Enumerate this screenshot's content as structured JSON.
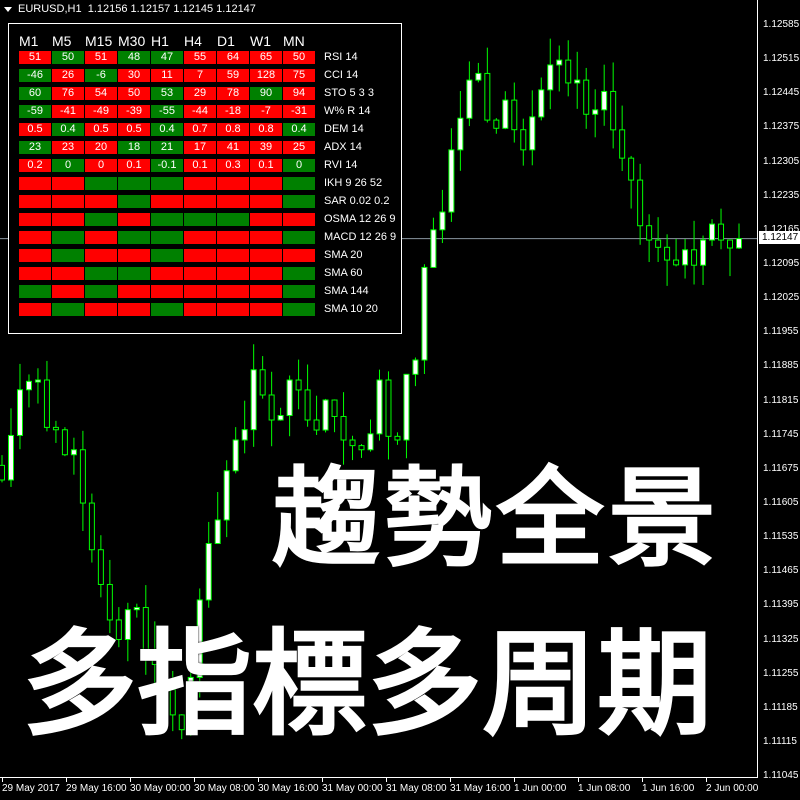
{
  "window": {
    "symbol_title": "EURUSD,H1",
    "ohlc": "1.12156 1.12157 1.12145 1.12147"
  },
  "colors": {
    "bull": "#ff0000",
    "bear": "#008000",
    "candle_outline": "#00ff00",
    "background": "#000000",
    "price_line": "#8a96a0"
  },
  "panel": {
    "timeframes": [
      "M1",
      "M5",
      "M15",
      "M30",
      "H1",
      "H4",
      "D1",
      "W1",
      "MN"
    ],
    "rows": [
      {
        "label": "RSI 14",
        "values": [
          "51",
          "50",
          "51",
          "48",
          "47",
          "55",
          "64",
          "65",
          "50"
        ],
        "colors": [
          "r",
          "g",
          "r",
          "g",
          "g",
          "r",
          "r",
          "r",
          "r"
        ]
      },
      {
        "label": "CCI 14",
        "values": [
          "-46",
          "26",
          "-6",
          "30",
          "11",
          "7",
          "59",
          "128",
          "75"
        ],
        "colors": [
          "g",
          "r",
          "g",
          "r",
          "r",
          "r",
          "r",
          "r",
          "r"
        ]
      },
      {
        "label": "STO 5 3 3",
        "values": [
          "60",
          "76",
          "54",
          "50",
          "53",
          "29",
          "78",
          "90",
          "94"
        ],
        "colors": [
          "g",
          "r",
          "r",
          "r",
          "g",
          "r",
          "r",
          "g",
          "r"
        ]
      },
      {
        "label": "W% R 14",
        "values": [
          "-59",
          "-41",
          "-49",
          "-39",
          "-55",
          "-44",
          "-18",
          "-7",
          "-31"
        ],
        "colors": [
          "g",
          "r",
          "r",
          "r",
          "g",
          "r",
          "r",
          "r",
          "r"
        ]
      },
      {
        "label": "DEM 14",
        "values": [
          "0.5",
          "0.4",
          "0.5",
          "0.5",
          "0.4",
          "0.7",
          "0.8",
          "0.8",
          "0.4"
        ],
        "colors": [
          "r",
          "g",
          "r",
          "r",
          "g",
          "r",
          "r",
          "r",
          "g"
        ]
      },
      {
        "label": "ADX 14",
        "values": [
          "23",
          "23",
          "20",
          "18",
          "21",
          "17",
          "41",
          "39",
          "25"
        ],
        "colors": [
          "g",
          "r",
          "r",
          "g",
          "g",
          "r",
          "r",
          "r",
          "r"
        ]
      },
      {
        "label": "RVI 14",
        "values": [
          "0.2",
          "0",
          "0",
          "0.1",
          "-0.1",
          "0.1",
          "0.3",
          "0.1",
          "0"
        ],
        "colors": [
          "r",
          "g",
          "r",
          "r",
          "g",
          "r",
          "r",
          "r",
          "g"
        ]
      },
      {
        "label": "IKH 9 26 52",
        "values": [
          "",
          "",
          "",
          "",
          "",
          "",
          "",
          "",
          ""
        ],
        "colors": [
          "r",
          "r",
          "g",
          "g",
          "g",
          "r",
          "r",
          "r",
          "g"
        ]
      },
      {
        "label": "SAR 0.02 0.2",
        "values": [
          "",
          "",
          "",
          "",
          "",
          "",
          "",
          "",
          ""
        ],
        "colors": [
          "r",
          "r",
          "r",
          "g",
          "r",
          "r",
          "r",
          "r",
          "g"
        ]
      },
      {
        "label": "OSMA 12 26 9",
        "values": [
          "",
          "",
          "",
          "",
          "",
          "",
          "",
          "",
          ""
        ],
        "colors": [
          "r",
          "r",
          "g",
          "r",
          "g",
          "g",
          "g",
          "r",
          "r"
        ]
      },
      {
        "label": "MACD 12 26 9",
        "values": [
          "",
          "",
          "",
          "",
          "",
          "",
          "",
          "",
          ""
        ],
        "colors": [
          "r",
          "g",
          "r",
          "g",
          "g",
          "r",
          "r",
          "r",
          "g"
        ]
      },
      {
        "label": "SMA 20",
        "values": [
          "",
          "",
          "",
          "",
          "",
          "",
          "",
          "",
          ""
        ],
        "colors": [
          "r",
          "g",
          "r",
          "r",
          "g",
          "r",
          "r",
          "r",
          "r"
        ]
      },
      {
        "label": "SMA 60",
        "values": [
          "",
          "",
          "",
          "",
          "",
          "",
          "",
          "",
          ""
        ],
        "colors": [
          "r",
          "r",
          "g",
          "g",
          "r",
          "r",
          "r",
          "r",
          "g"
        ]
      },
      {
        "label": "SMA 144",
        "values": [
          "",
          "",
          "",
          "",
          "",
          "",
          "",
          "",
          ""
        ],
        "colors": [
          "g",
          "r",
          "g",
          "r",
          "r",
          "r",
          "r",
          "r",
          "g"
        ]
      },
      {
        "label": "SMA 10 20",
        "values": [
          "",
          "",
          "",
          "",
          "",
          "",
          "",
          "",
          ""
        ],
        "colors": [
          "r",
          "g",
          "r",
          "r",
          "g",
          "r",
          "r",
          "r",
          "g"
        ]
      }
    ]
  },
  "price_axis": {
    "labels": [
      "1.12585",
      "1.12515",
      "1.12445",
      "1.12375",
      "1.12305",
      "1.12235",
      "1.12165",
      "1.12095",
      "1.12025",
      "1.11955",
      "1.11885",
      "1.11815",
      "1.11745",
      "1.11675",
      "1.11605",
      "1.11535",
      "1.11465",
      "1.11395",
      "1.11325",
      "1.11255",
      "1.11185",
      "1.11115",
      "1.11045"
    ],
    "current": "1.12147"
  },
  "time_axis": {
    "labels": [
      "29 May 2017",
      "29 May 16:00",
      "30 May 00:00",
      "30 May 08:00",
      "30 May 16:00",
      "31 May 00:00",
      "31 May 08:00",
      "31 May 16:00",
      "1 Jun 00:00",
      "1 Jun 08:00",
      "1 Jun 16:00",
      "2 Jun 00:00"
    ]
  },
  "chart_data": {
    "type": "candlestick",
    "symbol": "EURUSD",
    "timeframe": "H1",
    "ylim": [
      1.11045,
      1.12585
    ],
    "approx_closes": [
      1.11652,
      1.11837,
      1.11857,
      1.11755,
      1.11714,
      1.11509,
      1.11365,
      1.11386,
      1.11304,
      1.11222,
      1.1114,
      1.11406,
      1.1157,
      1.11734,
      1.11878,
      1.11775,
      1.11857,
      1.11775,
      1.11816,
      1.11734,
      1.11714,
      1.11857,
      1.11734,
      1.11898,
      1.12165,
      1.12329,
      1.12472,
      1.1239,
      1.12431,
      1.12329,
      1.12452,
      1.12513,
      1.12472,
      1.12411,
      1.1237,
      1.12267,
      1.12144,
      1.12103,
      1.12124,
      1.12144,
      1.12144,
      1.12147
    ]
  },
  "overlay": {
    "line1": "趨勢全景",
    "line2": "多指標多周期"
  }
}
